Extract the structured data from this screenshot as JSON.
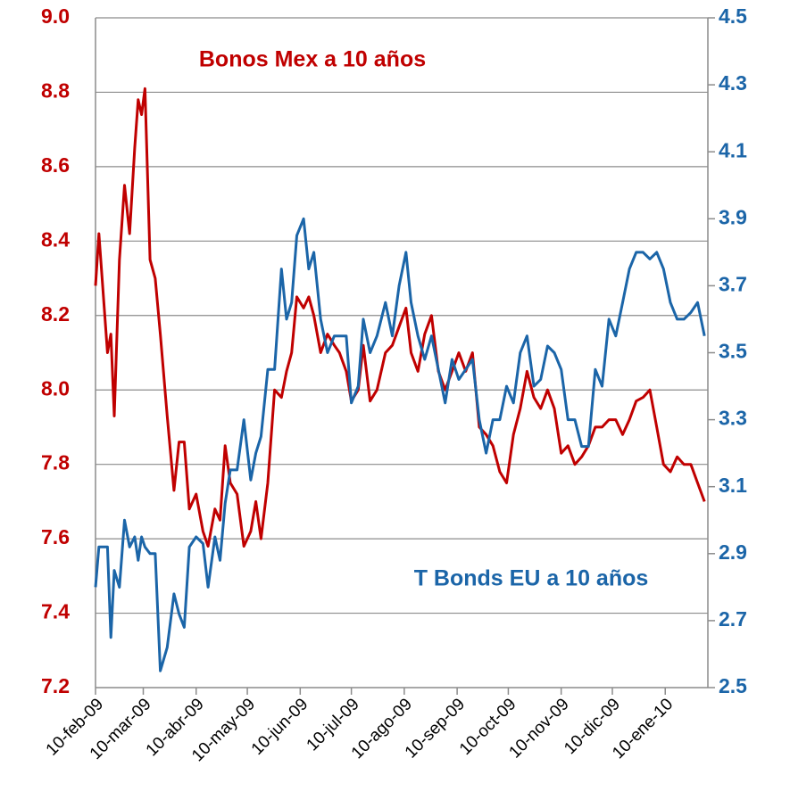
{
  "chart_data": {
    "type": "line",
    "x": [
      "10-feb-09",
      "12-feb-09",
      "17-feb-09",
      "19-feb-09",
      "21-feb-09",
      "24-feb-09",
      "27-feb-09",
      "02-mar-09",
      "05-mar-09",
      "07-mar-09",
      "09-mar-09",
      "11-mar-09",
      "14-mar-09",
      "17-mar-09",
      "20-mar-09",
      "24-mar-09",
      "28-mar-09",
      "31-mar-09",
      "03-abr-09",
      "06-abr-09",
      "10-abr-09",
      "14-abr-09",
      "17-abr-09",
      "21-abr-09",
      "24-abr-09",
      "27-abr-09",
      "30-abr-09",
      "04-may-09",
      "08-may-09",
      "12-may-09",
      "15-may-09",
      "18-may-09",
      "22-may-09",
      "26-may-09",
      "30-may-09",
      "02-jun-09",
      "05-jun-09",
      "08-jun-09",
      "12-jun-09",
      "15-jun-09",
      "18-jun-09",
      "22-jun-09",
      "26-jun-09",
      "30-jun-09",
      "03-jul-09",
      "07-jul-09",
      "10-jul-09",
      "14-jul-09",
      "17-jul-09",
      "21-jul-09",
      "25-jul-09",
      "30-jul-09",
      "03-ago-09",
      "07-ago-09",
      "11-ago-09",
      "14-ago-09",
      "18-ago-09",
      "22-ago-09",
      "26-ago-09",
      "30-ago-09",
      "03-sep-09",
      "07-sep-09",
      "11-sep-09",
      "15-sep-09",
      "19-sep-09",
      "23-sep-09",
      "27-sep-09",
      "01-oct-09",
      "05-oct-09",
      "09-oct-09",
      "13-oct-09",
      "17-oct-09",
      "21-oct-09",
      "25-oct-09",
      "29-oct-09",
      "02-nov-09",
      "06-nov-09",
      "10-nov-09",
      "14-nov-09",
      "18-nov-09",
      "22-nov-09",
      "26-nov-09",
      "30-nov-09",
      "04-dic-09",
      "08-dic-09",
      "12-dic-09",
      "16-dic-09",
      "20-dic-09",
      "24-dic-09",
      "28-dic-09",
      "01-ene-10",
      "05-ene-10",
      "09-ene-10",
      "13-ene-10",
      "17-ene-10",
      "21-ene-10",
      "25-ene-10",
      "29-ene-10",
      "02-feb-10"
    ],
    "series": [
      {
        "name": "Bonos Mex a 10 años",
        "color": "#c00000",
        "values": [
          8.28,
          8.42,
          8.1,
          8.15,
          7.93,
          8.35,
          8.55,
          8.42,
          8.65,
          8.78,
          8.74,
          8.81,
          8.35,
          8.3,
          8.15,
          7.93,
          7.73,
          7.86,
          7.86,
          7.68,
          7.72,
          7.62,
          7.58,
          7.68,
          7.65,
          7.85,
          7.75,
          7.72,
          7.58,
          7.62,
          7.7,
          7.6,
          7.75,
          8.0,
          7.98,
          8.05,
          8.1,
          8.25,
          8.22,
          8.25,
          8.2,
          8.1,
          8.15,
          8.12,
          8.1,
          8.05,
          7.97,
          8.0,
          8.12,
          7.97,
          8.0,
          8.1,
          8.12,
          8.17,
          8.22,
          8.1,
          8.05,
          8.15,
          8.2,
          8.05,
          8.0,
          8.05,
          8.1,
          8.05,
          8.1,
          7.9,
          7.88,
          7.85,
          7.78,
          7.75,
          7.88,
          7.95,
          8.05,
          7.98,
          7.95,
          8.0,
          7.95,
          7.83,
          7.85,
          7.8,
          7.82,
          7.85,
          7.9,
          7.9,
          7.92,
          7.92,
          7.88,
          7.92,
          7.97,
          7.98,
          8.0,
          7.9,
          7.8,
          7.78,
          7.82,
          7.8,
          7.8,
          7.75,
          7.7
        ]
      },
      {
        "name": "T Bonds EU a 10 años",
        "color": "#1b65a8",
        "axis": "y2",
        "values": [
          2.8,
          2.92,
          2.92,
          2.65,
          2.85,
          2.8,
          3.0,
          2.92,
          2.95,
          2.88,
          2.95,
          2.92,
          2.9,
          2.9,
          2.55,
          2.62,
          2.78,
          2.72,
          2.68,
          2.92,
          2.95,
          2.93,
          2.8,
          2.95,
          2.88,
          3.05,
          3.15,
          3.15,
          3.3,
          3.12,
          3.2,
          3.25,
          3.45,
          3.45,
          3.75,
          3.6,
          3.65,
          3.85,
          3.9,
          3.75,
          3.8,
          3.6,
          3.5,
          3.55,
          3.55,
          3.55,
          3.35,
          3.4,
          3.6,
          3.5,
          3.55,
          3.65,
          3.55,
          3.7,
          3.8,
          3.65,
          3.55,
          3.48,
          3.55,
          3.45,
          3.35,
          3.48,
          3.42,
          3.45,
          3.48,
          3.3,
          3.2,
          3.3,
          3.3,
          3.4,
          3.35,
          3.5,
          3.55,
          3.4,
          3.42,
          3.52,
          3.5,
          3.45,
          3.3,
          3.3,
          3.22,
          3.22,
          3.45,
          3.4,
          3.6,
          3.55,
          3.65,
          3.75,
          3.8,
          3.8,
          3.78,
          3.8,
          3.75,
          3.65,
          3.6,
          3.6,
          3.62,
          3.65,
          3.55
        ]
      }
    ],
    "xlim": [
      "10-feb-09",
      "04-feb-10"
    ],
    "xticks": [
      "10-feb-09",
      "10-mar-09",
      "10-abr-09",
      "10-may-09",
      "10-jun-09",
      "10-jul-09",
      "10-ago-09",
      "10-sep-09",
      "10-oct-09",
      "10-nov-09",
      "10-dic-09",
      "10-ene-10"
    ],
    "ylim": [
      7.2,
      9.0
    ],
    "yticks": [
      7.2,
      7.4,
      7.6,
      7.8,
      {
        "value": 8.0,
        "label": "8.0"
      },
      8.2,
      8.4,
      8.6,
      8.8,
      {
        "value": 9.0,
        "label": "9.0"
      }
    ],
    "y2lim": [
      2.5,
      4.5
    ],
    "y2ticks": [
      2.5,
      2.7,
      2.9,
      3.1,
      3.3,
      3.5,
      3.7,
      3.9,
      4.1,
      4.3,
      4.5
    ],
    "grid": true
  }
}
